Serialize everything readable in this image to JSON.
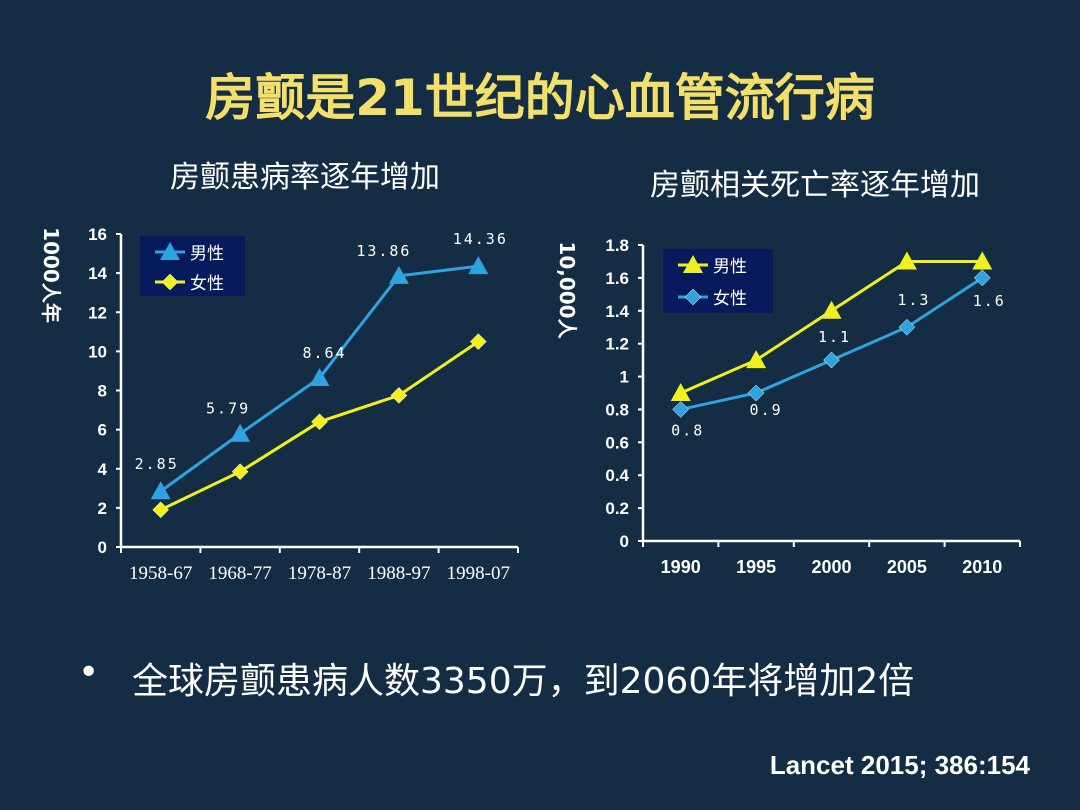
{
  "title": "房颤是21世纪的心血管流行病",
  "bullet": "•",
  "bullet_text": "全球房颤患病人数3350万，到2060年将增加2倍",
  "citation": "Lancet 2015; 386:154",
  "colors": {
    "male_left": "#2ea3e0",
    "female_left": "#f0f020",
    "male_right": "#f0f020",
    "female_right": "#2ea3e0"
  },
  "chart_data": [
    {
      "type": "line",
      "title": "房颤患病率逐年增加",
      "ylabel": "1000人年",
      "ylim": [
        0,
        16
      ],
      "yticks": [
        "0",
        "2",
        "4",
        "6",
        "8",
        "10",
        "12",
        "14",
        "16"
      ],
      "categories": [
        "1958-67",
        "1968-77",
        "1978-87",
        "1988-97",
        "1998-07"
      ],
      "series": [
        {
          "name": "男性",
          "marker": "triangle",
          "values": [
            2.85,
            5.79,
            8.64,
            13.86,
            14.36
          ],
          "labels": [
            "2.85",
            "5.79",
            "8.64",
            "13.86",
            "14.36"
          ]
        },
        {
          "name": "女性",
          "marker": "diamond",
          "values": [
            1.9,
            3.85,
            6.4,
            7.75,
            10.5
          ]
        }
      ],
      "legend": "top-left"
    },
    {
      "type": "line",
      "title": "房颤相关死亡率逐年增加",
      "ylabel": "10,000人",
      "ylim": [
        0,
        1.8
      ],
      "yticks": [
        "0",
        "0.2",
        "0.4",
        "0.6",
        "0.8",
        "1",
        "1.2",
        "1.4",
        "1.6",
        "1.8"
      ],
      "categories": [
        "1990",
        "1995",
        "2000",
        "2005",
        "2010"
      ],
      "series": [
        {
          "name": "男性",
          "marker": "triangle",
          "values": [
            0.9,
            1.1,
            1.4,
            1.7,
            1.7
          ]
        },
        {
          "name": "女性",
          "marker": "diamond",
          "values": [
            0.8,
            0.9,
            1.1,
            1.3,
            1.6
          ],
          "labels": [
            "0.8",
            "0.9",
            "1.1",
            "1.3",
            "1.6"
          ]
        }
      ],
      "legend": "top-left"
    }
  ]
}
